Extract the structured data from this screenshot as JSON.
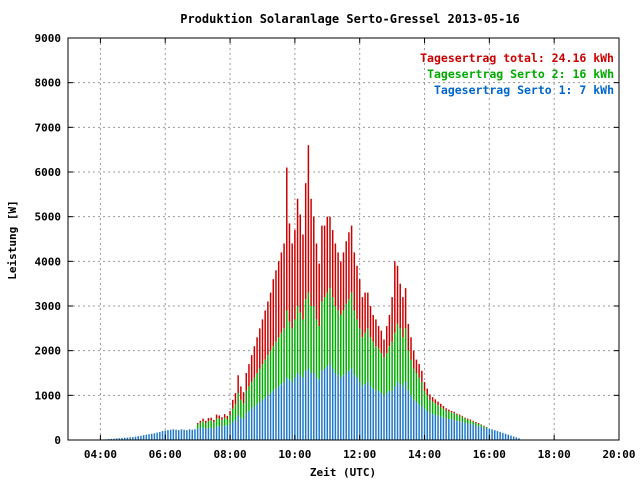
{
  "chart_data": {
    "type": "bar",
    "stacked": true,
    "title": "Produktion Solaranlage Serto-Gressel 2013-05-16",
    "xlabel": "Zeit (UTC)",
    "ylabel": "Leistung [W]",
    "xlim": [
      "03:00",
      "20:00"
    ],
    "ylim": [
      0,
      9000
    ],
    "x_ticks": [
      "04:00",
      "06:00",
      "08:00",
      "10:00",
      "12:00",
      "14:00",
      "16:00",
      "18:00",
      "20:00"
    ],
    "y_ticks": [
      "0",
      "1000",
      "2000",
      "3000",
      "4000",
      "5000",
      "6000",
      "7000",
      "8000",
      "9000"
    ],
    "grid": true,
    "legend_position": "top-right",
    "legend": [
      {
        "text": "Tagesertrag total: 24.16 kWh",
        "color": "#cc0000"
      },
      {
        "text": "Tagesertrag Serto 2: 16 kWh",
        "color": "#00aa00"
      },
      {
        "text": "Tagesertrag Serto 1: 7 kWh",
        "color": "#0066cc"
      }
    ],
    "sample_interval_minutes": 5,
    "x_start": "04:00",
    "series": [
      {
        "name": "Serto 1",
        "color": "#1f77c8",
        "values": [
          5,
          10,
          15,
          20,
          25,
          30,
          35,
          40,
          45,
          50,
          55,
          60,
          65,
          75,
          85,
          95,
          110,
          120,
          130,
          140,
          150,
          165,
          180,
          200,
          210,
          220,
          230,
          240,
          230,
          220,
          240,
          230,
          220,
          240,
          230,
          240,
          250,
          270,
          280,
          250,
          270,
          280,
          260,
          300,
          320,
          300,
          330,
          310,
          360,
          400,
          450,
          550,
          500,
          470,
          600,
          650,
          700,
          750,
          800,
          850,
          900,
          950,
          1000,
          1050,
          1100,
          1150,
          1200,
          1250,
          1300,
          1400,
          1350,
          1300,
          1400,
          1500,
          1450,
          1400,
          1550,
          1600,
          1500,
          1500,
          1400,
          1350,
          1550,
          1600,
          1650,
          1700,
          1600,
          1500,
          1450,
          1400,
          1450,
          1500,
          1550,
          1600,
          1450,
          1400,
          1300,
          1200,
          1250,
          1300,
          1200,
          1150,
          1100,
          1100,
          1050,
          1000,
          1050,
          1100,
          1100,
          1200,
          1300,
          1250,
          1200,
          1300,
          1100,
          1000,
          900,
          850,
          800,
          750,
          700,
          650,
          600,
          580,
          560,
          540,
          520,
          500,
          480,
          470,
          460,
          450,
          430,
          420,
          400,
          380,
          370,
          360,
          340,
          320,
          310,
          300,
          280,
          260,
          250,
          240,
          220,
          200,
          180,
          160,
          140,
          120,
          100,
          80,
          60,
          40
        ]
      },
      {
        "name": "Serto 2",
        "color": "#00aa00",
        "values": [
          0,
          0,
          0,
          0,
          0,
          0,
          0,
          0,
          0,
          0,
          0,
          0,
          0,
          0,
          0,
          0,
          0,
          0,
          0,
          0,
          0,
          0,
          0,
          0,
          0,
          0,
          0,
          0,
          0,
          0,
          0,
          0,
          0,
          0,
          0,
          0,
          100,
          120,
          140,
          130,
          150,
          160,
          140,
          180,
          160,
          150,
          170,
          160,
          200,
          300,
          350,
          500,
          400,
          350,
          500,
          550,
          600,
          650,
          700,
          750,
          800,
          850,
          900,
          950,
          1000,
          1050,
          1100,
          1150,
          1200,
          1500,
          1300,
          1200,
          1300,
          1500,
          1400,
          1300,
          1600,
          1700,
          1500,
          1500,
          1300,
          1200,
          1550,
          1600,
          1650,
          1700,
          1600,
          1500,
          1450,
          1400,
          1450,
          1550,
          1600,
          1700,
          1450,
          1300,
          1200,
          1100,
          1150,
          1200,
          1100,
          1050,
          1000,
          950,
          900,
          850,
          900,
          1000,
          1100,
          1200,
          1300,
          1250,
          1100,
          1200,
          900,
          800,
          700,
          650,
          600,
          550,
          400,
          350,
          300,
          280,
          260,
          240,
          220,
          200,
          180,
          170,
          160,
          150,
          140,
          130,
          120,
          100,
          90,
          80,
          70,
          60,
          50,
          40,
          30,
          20,
          0,
          0,
          0,
          0,
          0,
          0,
          0,
          0,
          0,
          0,
          0,
          0
        ]
      },
      {
        "name": "total",
        "color": "#cc0000",
        "values": [
          0,
          0,
          0,
          0,
          0,
          0,
          0,
          0,
          0,
          0,
          0,
          0,
          0,
          0,
          0,
          0,
          0,
          0,
          0,
          0,
          0,
          0,
          0,
          0,
          0,
          0,
          0,
          0,
          0,
          0,
          0,
          0,
          0,
          0,
          0,
          0,
          30,
          40,
          60,
          50,
          70,
          60,
          50,
          90,
          70,
          60,
          80,
          70,
          90,
          200,
          250,
          400,
          300,
          250,
          400,
          500,
          600,
          700,
          800,
          900,
          1000,
          1100,
          1200,
          1300,
          1500,
          1600,
          1700,
          1800,
          1900,
          3200,
          2200,
          1900,
          2000,
          2400,
          2200,
          1900,
          2600,
          3300,
          2400,
          2000,
          1700,
          1400,
          1700,
          1600,
          1700,
          1600,
          1500,
          1400,
          1300,
          1200,
          1300,
          1400,
          1500,
          1500,
          1300,
          1200,
          1100,
          900,
          900,
          800,
          700,
          600,
          600,
          500,
          500,
          400,
          600,
          700,
          1000,
          1600,
          1300,
          1000,
          900,
          900,
          600,
          500,
          400,
          300,
          300,
          250,
          200,
          150,
          120,
          100,
          90,
          80,
          70,
          60,
          50,
          40,
          30,
          30,
          20,
          20,
          20,
          20,
          20,
          20,
          20,
          20,
          20,
          10,
          10,
          10,
          0,
          0,
          0,
          0,
          0,
          0,
          0,
          0,
          0,
          0,
          0,
          0
        ]
      }
    ]
  }
}
